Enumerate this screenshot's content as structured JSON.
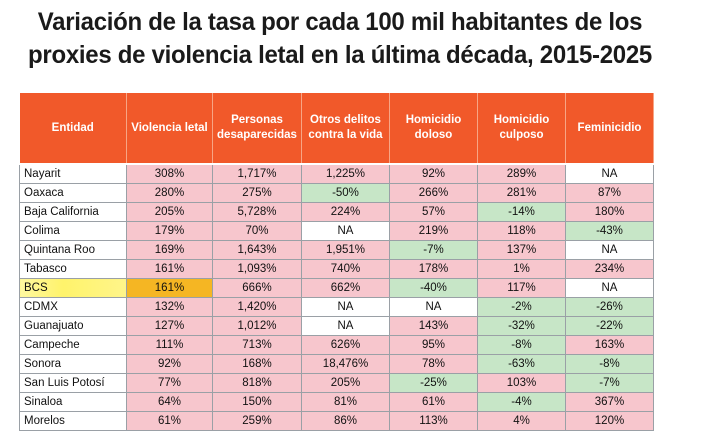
{
  "title": {
    "line1": "Variación de la tasa por cada 100 mil habitantes de los",
    "line2": "proxies de violencia letal en la última década, 2015-2025"
  },
  "columns": [
    "Entidad",
    "Violencia letal",
    "Personas desaparecidas",
    "Otros delitos contra la vida",
    "Homicidio doloso",
    "Homicidio culposo",
    "Feminicidio"
  ],
  "colors": {
    "header": "#f1592a",
    "increase": "#f7c6cd",
    "decrease": "#c7e6c7",
    "highlight": "#f5b623",
    "marker": "#fff36b"
  },
  "rows": [
    {
      "entidad": "Nayarit",
      "values": [
        "308%",
        "1,717%",
        "1,225%",
        "92%",
        "289%",
        "NA"
      ],
      "tones": [
        "pink",
        "pink",
        "pink",
        "pink",
        "pink",
        "white"
      ]
    },
    {
      "entidad": "Oaxaca",
      "values": [
        "280%",
        "275%",
        "-50%",
        "266%",
        "281%",
        "87%"
      ],
      "tones": [
        "pink",
        "pink",
        "green",
        "pink",
        "pink",
        "pink"
      ]
    },
    {
      "entidad": "Baja California",
      "values": [
        "205%",
        "5,728%",
        "224%",
        "57%",
        "-14%",
        "180%"
      ],
      "tones": [
        "pink",
        "pink",
        "pink",
        "pink",
        "green",
        "pink"
      ]
    },
    {
      "entidad": "Colima",
      "values": [
        "179%",
        "70%",
        "NA",
        "219%",
        "118%",
        "-43%"
      ],
      "tones": [
        "pink",
        "pink",
        "white",
        "pink",
        "pink",
        "green"
      ]
    },
    {
      "entidad": "Quintana Roo",
      "values": [
        "169%",
        "1,643%",
        "1,951%",
        "-7%",
        "137%",
        "NA"
      ],
      "tones": [
        "pink",
        "pink",
        "pink",
        "green",
        "pink",
        "white"
      ]
    },
    {
      "entidad": "Tabasco",
      "values": [
        "161%",
        "1,093%",
        "740%",
        "178%",
        "1%",
        "234%"
      ],
      "tones": [
        "pink",
        "pink",
        "pink",
        "pink",
        "pink",
        "pink"
      ]
    },
    {
      "entidad": "BCS",
      "values": [
        "161%",
        "666%",
        "662%",
        "-40%",
        "117%",
        "NA"
      ],
      "tones": [
        "hl",
        "pink",
        "pink",
        "green",
        "pink",
        "white"
      ],
      "highlight": true
    },
    {
      "entidad": "CDMX",
      "values": [
        "132%",
        "1,420%",
        "NA",
        "NA",
        "-2%",
        "-26%"
      ],
      "tones": [
        "pink",
        "pink",
        "white",
        "white",
        "green",
        "green"
      ]
    },
    {
      "entidad": "Guanajuato",
      "values": [
        "127%",
        "1,012%",
        "NA",
        "143%",
        "-32%",
        "-22%"
      ],
      "tones": [
        "pink",
        "pink",
        "white",
        "pink",
        "green",
        "green"
      ]
    },
    {
      "entidad": "Campeche",
      "values": [
        "111%",
        "713%",
        "626%",
        "95%",
        "-8%",
        "163%"
      ],
      "tones": [
        "pink",
        "pink",
        "pink",
        "pink",
        "green",
        "pink"
      ]
    },
    {
      "entidad": "Sonora",
      "values": [
        "92%",
        "168%",
        "18,476%",
        "78%",
        "-63%",
        "-8%"
      ],
      "tones": [
        "pink",
        "pink",
        "pink",
        "pink",
        "green",
        "green"
      ]
    },
    {
      "entidad": "San Luis Potosí",
      "values": [
        "77%",
        "818%",
        "205%",
        "-25%",
        "103%",
        "-7%"
      ],
      "tones": [
        "pink",
        "pink",
        "pink",
        "green",
        "pink",
        "green"
      ]
    },
    {
      "entidad": "Sinaloa",
      "values": [
        "64%",
        "150%",
        "81%",
        "61%",
        "-4%",
        "367%"
      ],
      "tones": [
        "pink",
        "pink",
        "pink",
        "pink",
        "green",
        "pink"
      ]
    },
    {
      "entidad": "Morelos",
      "values": [
        "61%",
        "259%",
        "86%",
        "113%",
        "4%",
        "120%"
      ],
      "tones": [
        "pink",
        "pink",
        "pink",
        "pink",
        "pink",
        "pink"
      ]
    }
  ]
}
